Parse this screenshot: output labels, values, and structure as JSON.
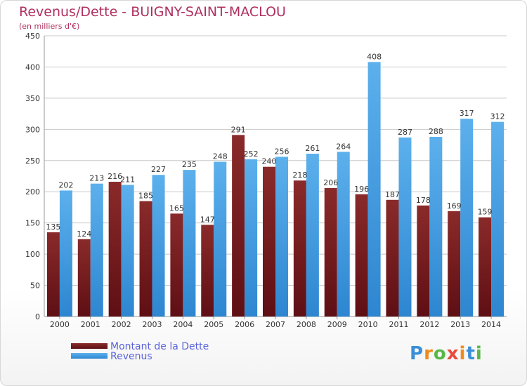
{
  "header": {
    "title": "Revenus/Dette - BUIGNY-SAINT-MACLOU",
    "subtitle": "(en milliers d'€)"
  },
  "logo": {
    "text": "Proxiti",
    "colors": [
      "#3a8fd8",
      "#f08a1d",
      "#58b848",
      "#e94b3c",
      "#f08a1d",
      "#3a8fd8",
      "#58b848"
    ]
  },
  "colors": {
    "title": "#b0305e",
    "dette": "#7a1a1f",
    "revenus": "#3b9ae1",
    "legend_text": "#5b63d9",
    "grid": "#c8c8c8"
  },
  "chart_data": {
    "type": "bar",
    "title": "Revenus/Dette - BUIGNY-SAINT-MACLOU",
    "subtitle": "(en milliers d'€)",
    "xlabel": "",
    "ylabel": "",
    "ylim": [
      0,
      450
    ],
    "yticks": [
      0,
      50,
      100,
      150,
      200,
      250,
      300,
      350,
      400,
      450
    ],
    "grid": true,
    "legend_position": "bottom-left",
    "categories": [
      "2000",
      "2001",
      "2002",
      "2003",
      "2004",
      "2005",
      "2006",
      "2007",
      "2008",
      "2009",
      "2010",
      "2011",
      "2012",
      "2013",
      "2014"
    ],
    "series": [
      {
        "name": "Montant de la Dette",
        "color": "#7a1a1f",
        "values": [
          135,
          124,
          216,
          185,
          165,
          147,
          291,
          240,
          218,
          206,
          196,
          187,
          178,
          169,
          159
        ]
      },
      {
        "name": "Revenus",
        "color": "#3b9ae1",
        "values": [
          202,
          213,
          211,
          227,
          235,
          248,
          252,
          256,
          261,
          264,
          408,
          287,
          288,
          317,
          312
        ]
      }
    ]
  }
}
